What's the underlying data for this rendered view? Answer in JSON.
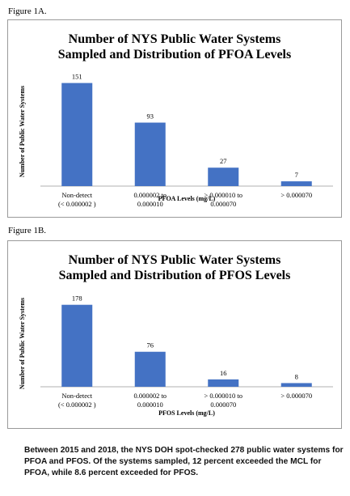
{
  "figure_a_label": "Figure 1A.",
  "figure_b_label": "Figure 1B.",
  "caption": "Between 2015 and 2018, the NYS DOH spot-checked 278 public water systems for PFOA and PFOS. Of the systems sampled, 12 percent exceeded the MCL for PFOA, while 8.6 percent exceeded for PFOS.",
  "chart_data": [
    {
      "type": "bar",
      "title_lines": [
        "Number of NYS Public Water Systems",
        "Sampled and Distribution of PFOA Levels"
      ],
      "categories": [
        [
          "Non-detect",
          "(< 0.000002 )"
        ],
        [
          "0.000002 to",
          "0.000010"
        ],
        [
          "> 0.000010 to",
          "0.000070"
        ],
        [
          "> 0.000070"
        ]
      ],
      "values": [
        151,
        93,
        27,
        7
      ],
      "data_labels": [
        "151",
        "93",
        "27",
        "7"
      ],
      "xlabel": "PFOA Levels (mg/L)",
      "ylabel": "Number of Public Water Systems",
      "ylim": [
        0,
        160
      ],
      "grid": false,
      "bar_color": "#4472c4"
    },
    {
      "type": "bar",
      "title_lines": [
        "Number of NYS Public Water Systems",
        "Sampled and Distribution of PFOS Levels"
      ],
      "categories": [
        [
          "Non-detect",
          "(< 0.000002 )"
        ],
        [
          "0.000002 to",
          "0.000010"
        ],
        [
          "> 0.000010 to",
          "0.000070"
        ],
        [
          "> 0.000070"
        ]
      ],
      "values": [
        178,
        76,
        16,
        8
      ],
      "data_labels": [
        "178",
        "76",
        "16",
        "8"
      ],
      "xlabel": "PFOS Levels (mg/L)",
      "ylabel": "Number of Public Water Systems",
      "ylim": [
        0,
        188
      ],
      "grid": false,
      "bar_color": "#4472c4"
    }
  ]
}
